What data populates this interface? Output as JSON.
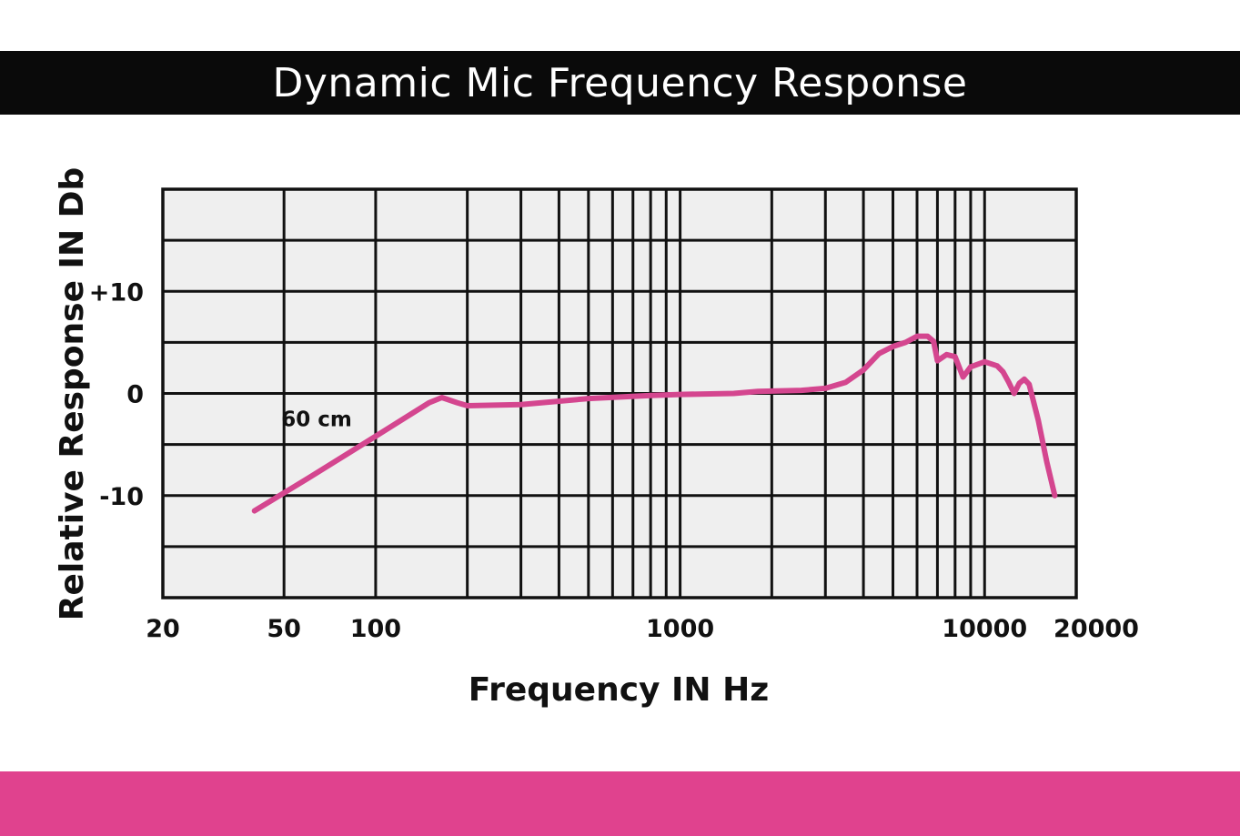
{
  "title": "Dynamic Mic Frequency Response",
  "colors": {
    "title_bar_bg": "#0a0a0a",
    "title_text": "#ffffff",
    "plot_bg": "#efefef",
    "grid": "#111111",
    "curve": "#d4468f",
    "accent_band": "#e0428e"
  },
  "chart_data": {
    "type": "line",
    "title": "Dynamic Mic Frequency Response",
    "xlabel": "Frequency IN Hz",
    "ylabel": "Relative Response IN Db",
    "xscale": "log",
    "xlim": [
      20,
      20000
    ],
    "ylim": [
      -20,
      20
    ],
    "grid": true,
    "x_tick_labels": [
      {
        "value": 20,
        "label": "20"
      },
      {
        "value": 50,
        "label": "50"
      },
      {
        "value": 100,
        "label": "100"
      },
      {
        "value": 1000,
        "label": "1000"
      },
      {
        "value": 10000,
        "label": "10000"
      },
      {
        "value": 20000,
        "label": "20000"
      }
    ],
    "x_gridlines": [
      50,
      100,
      200,
      300,
      400,
      500,
      600,
      700,
      800,
      900,
      1000,
      2000,
      3000,
      4000,
      5000,
      6000,
      7000,
      8000,
      9000,
      10000
    ],
    "y_tick_labels": [
      {
        "value": 10,
        "label": "+10"
      },
      {
        "value": 0,
        "label": "0"
      },
      {
        "value": -10,
        "label": "-10"
      }
    ],
    "y_gridlines": [
      -15,
      -10,
      -5,
      0,
      5,
      10,
      15
    ],
    "annotations": [
      {
        "text": "60 cm",
        "x": 64,
        "y": -2.5
      }
    ],
    "series": [
      {
        "x": [
          40,
          60,
          100,
          150,
          165,
          185,
          200,
          300,
          500,
          800,
          1000,
          1500,
          1800,
          2500,
          3000,
          3500,
          4000,
          4500,
          5000,
          5500,
          6000,
          6500,
          6800,
          7000,
          7500,
          8000,
          8500,
          9000,
          10000,
          11000,
          11500,
          12000,
          12500,
          13000,
          13500,
          14000,
          15000,
          16000,
          17000
        ],
        "y": [
          -11.5,
          -8.3,
          -4.2,
          -0.9,
          -0.4,
          -0.9,
          -1.2,
          -1.1,
          -0.5,
          -0.2,
          -0.1,
          0,
          0.2,
          0.3,
          0.5,
          1.1,
          2.3,
          3.9,
          4.6,
          5.0,
          5.6,
          5.6,
          5.1,
          3.2,
          3.8,
          3.6,
          1.6,
          2.6,
          3.1,
          2.7,
          2.1,
          1.1,
          0,
          1.0,
          1.4,
          0.9,
          -2.6,
          -6.7,
          -10.0
        ]
      }
    ]
  }
}
